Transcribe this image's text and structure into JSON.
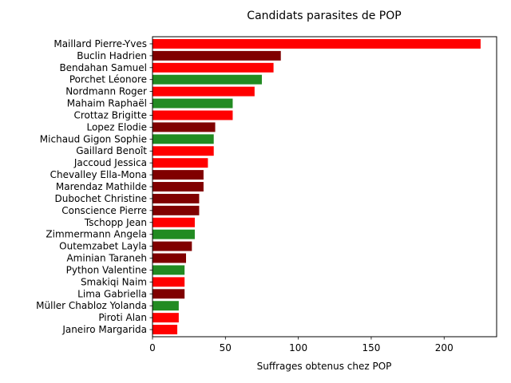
{
  "chart_data": {
    "type": "bar",
    "orientation": "horizontal",
    "title": "Candidats parasites de POP",
    "xlabel": "Suffrages obtenus chez POP",
    "ylabel": "",
    "xlim": [
      0,
      236
    ],
    "xticks": [
      0,
      50,
      100,
      150,
      200
    ],
    "grid": false,
    "legend": "none",
    "colors": {
      "red": "#ff0000",
      "maroon": "#800000",
      "green": "#228b22"
    },
    "categories": [
      "Maillard Pierre-Yves",
      "Buclin Hadrien",
      "Bendahan Samuel",
      "Porchet Léonore",
      "Nordmann Roger",
      "Mahaim Raphaël",
      "Crottaz Brigitte",
      "Lopez Elodie",
      "Michaud Gigon Sophie",
      "Gaillard Benoît",
      "Jaccoud Jessica",
      "Chevalley Ella-Mona",
      "Marendaz Mathilde",
      "Dubochet Christine",
      "Conscience Pierre",
      "Tschopp Jean",
      "Zimmermann Angela",
      "Outemzabet Layla",
      "Aminian Taraneh",
      "Python Valentine",
      "Smakiqi Naim",
      "Lima Gabriella",
      "Müller Chabloz Yolanda",
      "Piroti Alan",
      "Janeiro Margarida"
    ],
    "values": [
      225,
      88,
      83,
      75,
      70,
      55,
      55,
      43,
      42,
      42,
      38,
      35,
      35,
      32,
      32,
      29,
      29,
      27,
      23,
      22,
      22,
      22,
      18,
      18,
      17
    ],
    "bar_colors": [
      "red",
      "maroon",
      "red",
      "green",
      "red",
      "green",
      "red",
      "maroon",
      "green",
      "red",
      "red",
      "maroon",
      "maroon",
      "maroon",
      "maroon",
      "red",
      "green",
      "maroon",
      "maroon",
      "green",
      "red",
      "maroon",
      "green",
      "red",
      "red"
    ]
  }
}
